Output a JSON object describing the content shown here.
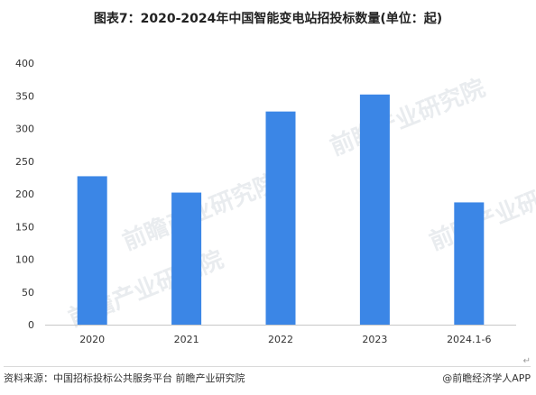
{
  "title": "图表7：2020-2024年中国智能变电站招投标数量(单位：起)",
  "footer": {
    "source": "资料来源：中国招标投标公共服务平台 前瞻产业研究院",
    "brand": "@前瞻经济学人APP"
  },
  "watermark": "前瞻产业研究院",
  "return_mark": "↵",
  "chart_data": {
    "type": "bar",
    "title": "图表7：2020-2024年中国智能变电站招投标数量(单位：起)",
    "categories": [
      "2020",
      "2021",
      "2022",
      "2023",
      "2024.1-6"
    ],
    "values": [
      227,
      202,
      326,
      352,
      187
    ],
    "ylim": [
      0,
      400
    ],
    "yticks": [
      0,
      50,
      100,
      150,
      200,
      250,
      300,
      350,
      400
    ],
    "grid": false,
    "bar_color": "#3b86e6"
  }
}
